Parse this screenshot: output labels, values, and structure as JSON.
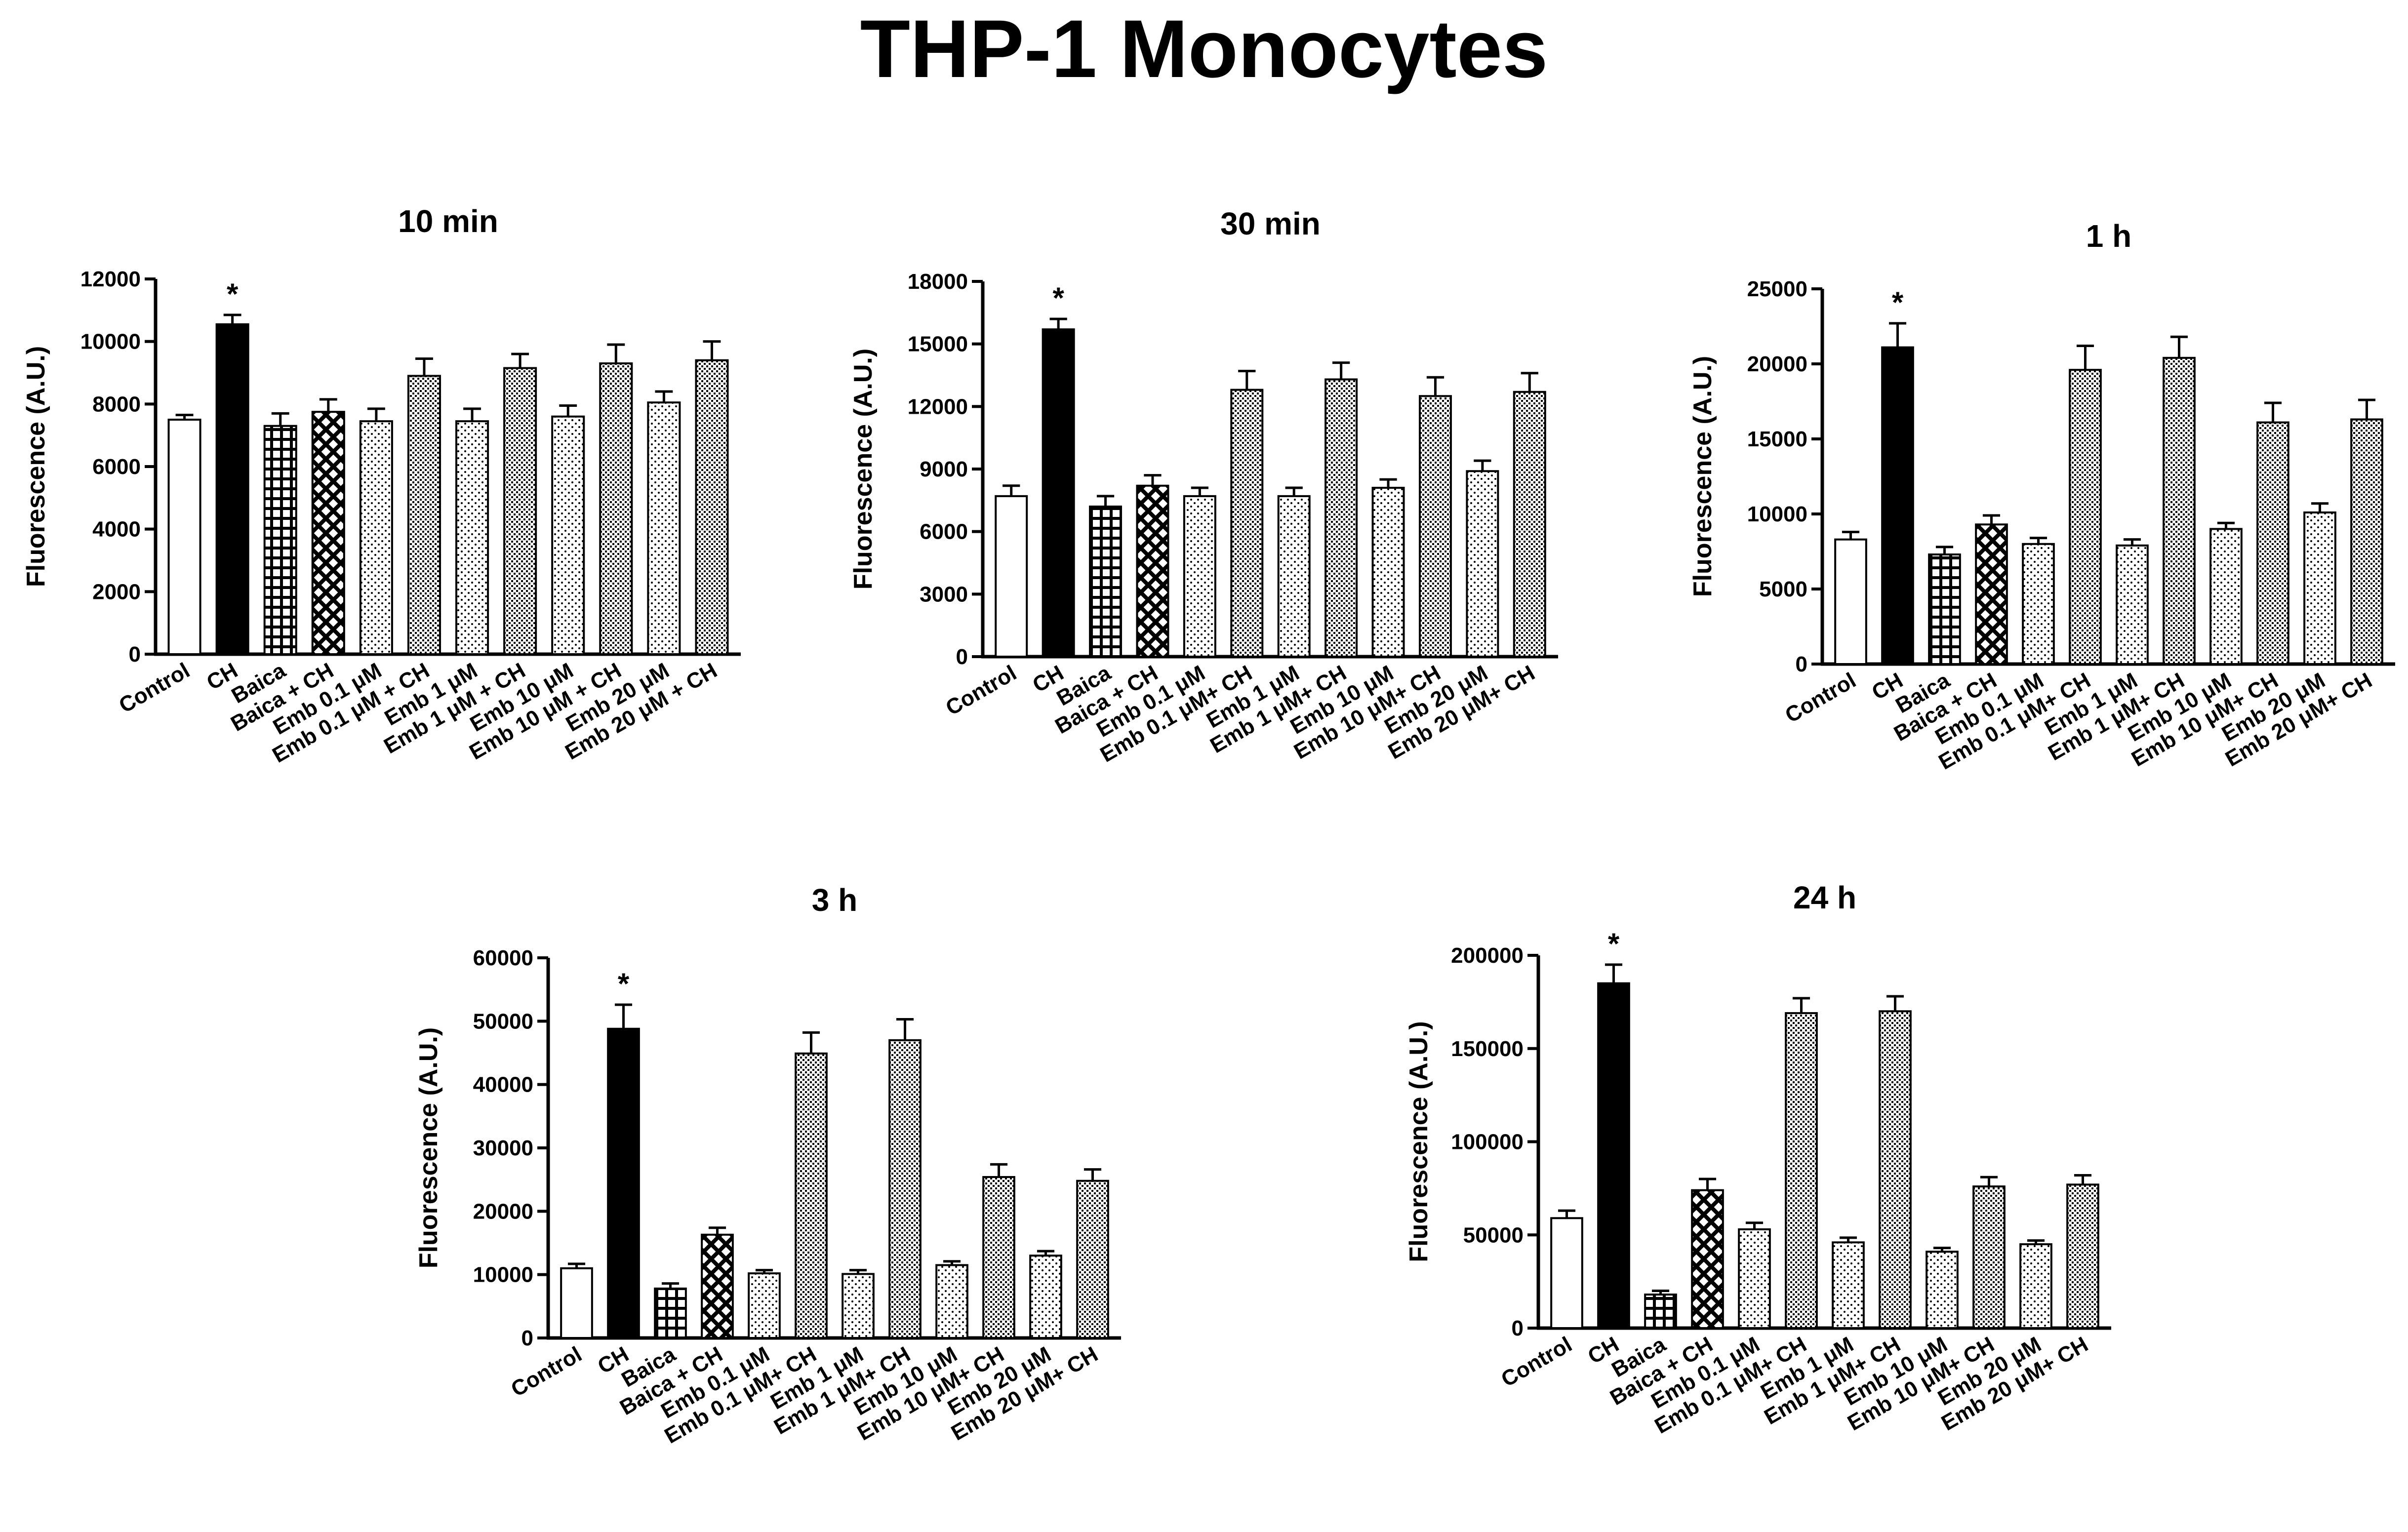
{
  "figure_title": "THP-1 Monocytes",
  "chart_data": [
    {
      "type": "bar",
      "title": "10 min",
      "ylabel": "Fluorescence (A.U.)",
      "xlabel": "",
      "ylim": [
        0,
        12000
      ],
      "yticks": [
        0,
        2000,
        4000,
        6000,
        8000,
        10000,
        12000
      ],
      "yticklabels": [
        "0",
        "2000",
        "4000",
        "6000",
        "8000",
        "10000",
        "12000"
      ],
      "categories": [
        "Control",
        "CH",
        "Baica",
        "Baica + CH",
        "Emb 0.1 μM",
        "Emb 0.1 μM + CH",
        "Emb 1 μM",
        "Emb 1 μM + CH",
        "Emb 10 μM",
        "Emb 10 μM + CH",
        "Emb 20 μM",
        "Emb 20 μM + CH"
      ],
      "values": [
        7500,
        10550,
        7300,
        7750,
        7450,
        8900,
        7450,
        9150,
        7600,
        9300,
        8050,
        9400
      ],
      "errors": [
        150,
        300,
        400,
        400,
        400,
        550,
        400,
        450,
        350,
        600,
        350,
        600
      ],
      "significance": [
        "",
        "*",
        "",
        "",
        "",
        "",
        "",
        "",
        "",
        "",
        "",
        ""
      ]
    },
    {
      "type": "bar",
      "title": "30 min",
      "ylabel": "Fluorescence (A.U.)",
      "xlabel": "",
      "ylim": [
        0,
        18000
      ],
      "yticks": [
        0,
        3000,
        6000,
        9000,
        12000,
        15000,
        18000
      ],
      "yticklabels": [
        "0",
        "3000",
        "6000",
        "9000",
        "12000",
        "15000",
        "18000"
      ],
      "categories": [
        "Control",
        "CH",
        "Baica",
        "Baica + CH",
        "Emb 0.1 μM",
        "Emb 0.1 μM+ CH",
        "Emb 1 μM",
        "Emb 1 μM+ CH",
        "Emb 10 μM",
        "Emb 10 μM+ CH",
        "Emb 20 μM",
        "Emb 20 μM+ CH"
      ],
      "values": [
        7700,
        15700,
        7200,
        8200,
        7700,
        12800,
        7700,
        13300,
        8100,
        12500,
        8900,
        12700
      ],
      "errors": [
        500,
        500,
        500,
        500,
        400,
        900,
        400,
        800,
        400,
        900,
        500,
        900
      ],
      "significance": [
        "",
        "*",
        "",
        "",
        "",
        "",
        "",
        "",
        "",
        "",
        "",
        ""
      ]
    },
    {
      "type": "bar",
      "title": "1 h",
      "ylabel": "Fluorescence (A.U.)",
      "xlabel": "",
      "ylim": [
        0,
        25000
      ],
      "yticks": [
        0,
        5000,
        10000,
        15000,
        20000,
        25000
      ],
      "yticklabels": [
        "0",
        "5000",
        "10000",
        "15000",
        "20000",
        "25000"
      ],
      "categories": [
        "Control",
        "CH",
        "Baica",
        "Baica + CH",
        "Emb 0.1 μM",
        "Emb 0.1 μM+ CH",
        "Emb 1 μM",
        "Emb 1 μM+ CH",
        "Emb 10 μM",
        "Emb 10 μM+ CH",
        "Emb 20 μM",
        "Emb 20 μM+ CH"
      ],
      "values": [
        8300,
        21100,
        7300,
        9300,
        8000,
        19600,
        7900,
        20400,
        9000,
        16100,
        10100,
        16300
      ],
      "errors": [
        500,
        1600,
        500,
        600,
        400,
        1600,
        400,
        1400,
        400,
        1300,
        600,
        1300
      ],
      "significance": [
        "",
        "*",
        "",
        "",
        "",
        "",
        "",
        "",
        "",
        "",
        "",
        ""
      ]
    },
    {
      "type": "bar",
      "title": "3 h",
      "ylabel": "Fluorescence (A.U.)",
      "xlabel": "",
      "ylim": [
        0,
        60000
      ],
      "yticks": [
        0,
        10000,
        20000,
        30000,
        40000,
        50000,
        60000
      ],
      "yticklabels": [
        "0",
        "10000",
        "20000",
        "30000",
        "40000",
        "50000",
        "60000"
      ],
      "categories": [
        "Control",
        "CH",
        "Baica",
        "Baica + CH",
        "Emb 0.1 μM",
        "Emb 0.1 μM+ CH",
        "Emb 1 μM",
        "Emb 1 μM+ CH",
        "Emb 10 μM",
        "Emb 10 μM+ CH",
        "Emb 20 μM",
        "Emb 20 μM+ CH"
      ],
      "values": [
        11000,
        48800,
        7800,
        16300,
        10200,
        44900,
        10100,
        47000,
        11500,
        25400,
        13000,
        24800
      ],
      "errors": [
        700,
        3800,
        800,
        1100,
        500,
        3300,
        600,
        3300,
        600,
        2000,
        700,
        1800
      ],
      "significance": [
        "",
        "*",
        "",
        "",
        "",
        "",
        "",
        "",
        "",
        "",
        "",
        ""
      ]
    },
    {
      "type": "bar",
      "title": "24 h",
      "ylabel": "Fluorescence (A.U.)",
      "xlabel": "",
      "ylim": [
        0,
        200000
      ],
      "yticks": [
        0,
        50000,
        100000,
        150000,
        200000
      ],
      "yticklabels": [
        "0",
        "50000",
        "100000",
        "150000",
        "200000"
      ],
      "categories": [
        "Control",
        "CH",
        "Baica",
        "Baica + CH",
        "Emb 0.1 μM",
        "Emb 0.1 μM+ CH",
        "Emb 1 μM",
        "Emb 1 μM+ CH",
        "Emb 10 μM",
        "Emb 10 μM+ CH",
        "Emb 20 μM",
        "Emb 20 μM+ CH"
      ],
      "values": [
        59000,
        185000,
        18000,
        74000,
        53000,
        169000,
        46000,
        170000,
        41000,
        76000,
        45000,
        77000
      ],
      "errors": [
        4000,
        10000,
        2000,
        6000,
        3500,
        8000,
        2500,
        8000,
        2000,
        5000,
        2000,
        5000
      ],
      "significance": [
        "",
        "*",
        "",
        "",
        "",
        "",
        "",
        "",
        "",
        "",
        "",
        ""
      ]
    }
  ],
  "bar_fills": [
    "white",
    "black",
    "grid",
    "cross",
    "fine-dots",
    "dense-dots",
    "fine-dots",
    "dense-dots",
    "fine-dots",
    "dense-dots",
    "fine-dots",
    "dense-dots"
  ]
}
